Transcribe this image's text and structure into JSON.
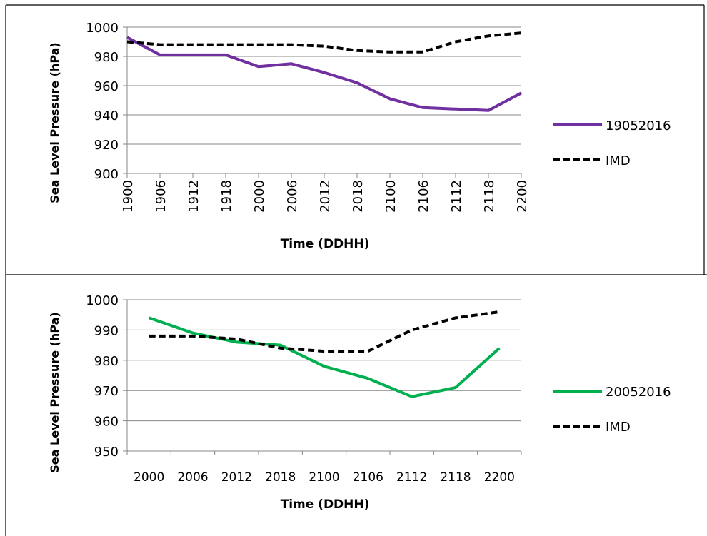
{
  "figure": {
    "colors": {
      "border": "#000000",
      "grid": "#878787",
      "axis": "#878787",
      "imd": "#000000"
    }
  },
  "chart_data": [
    {
      "type": "line",
      "xlabel": "Time (DDHH)",
      "ylabel": "Sea Level Pressure (hPa)",
      "ylim": [
        900,
        1000
      ],
      "yticks": [
        900,
        920,
        940,
        960,
        980,
        1000
      ],
      "categories": [
        "1900",
        "1906",
        "1912",
        "1918",
        "2000",
        "2006",
        "2012",
        "2018",
        "2100",
        "2106",
        "2112",
        "2118",
        "2200"
      ],
      "grid": true,
      "legend_position": "right",
      "series": [
        {
          "name": "19052016",
          "color": "#7030A0",
          "dashed": false,
          "values": [
            993,
            981,
            981,
            981,
            973,
            975,
            969,
            962,
            951,
            945,
            944,
            943,
            955
          ]
        },
        {
          "name": "IMD",
          "color": "#000000",
          "dashed": true,
          "values": [
            990,
            988,
            988,
            988,
            988,
            988,
            987,
            984,
            983,
            983,
            990,
            994,
            996
          ]
        }
      ]
    },
    {
      "type": "line",
      "xlabel": "Time (DDHH)",
      "ylabel": "Sea Level Pressure (hPa)",
      "ylim": [
        950,
        1000
      ],
      "yticks": [
        950,
        960,
        970,
        980,
        990,
        1000
      ],
      "categories": [
        "2000",
        "2006",
        "2012",
        "2018",
        "2100",
        "2106",
        "2112",
        "2118",
        "2200"
      ],
      "grid": true,
      "legend_position": "right",
      "series": [
        {
          "name": "20052016",
          "color": "#00B050",
          "dashed": false,
          "values": [
            994,
            989,
            986,
            985,
            978,
            974,
            968,
            971,
            984
          ]
        },
        {
          "name": "IMD",
          "color": "#000000",
          "dashed": true,
          "values": [
            988,
            988,
            987,
            984,
            983,
            983,
            990,
            994,
            996
          ]
        }
      ]
    }
  ]
}
